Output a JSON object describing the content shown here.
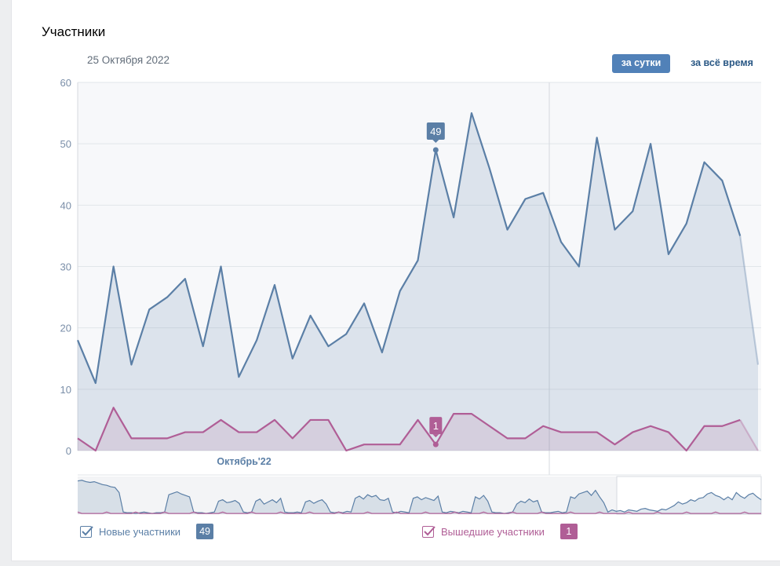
{
  "title": "Участники",
  "date": "25 Октября 2022",
  "buttons": {
    "day": "за сутки",
    "all": "за всё время"
  },
  "colors": {
    "joined": "#5b7fa6",
    "left": "#b05e96",
    "accent": "#5181b8"
  },
  "chart_data": {
    "type": "area",
    "ylim": [
      0,
      60
    ],
    "yticks": [
      "0",
      "10",
      "20",
      "30",
      "40",
      "50",
      "60"
    ],
    "xlabel_month": "Октябрь'22",
    "grid": true,
    "series": [
      {
        "name": "Новые участники",
        "values": [
          18,
          11,
          30,
          14,
          23,
          25,
          28,
          17,
          30,
          12,
          18,
          27,
          15,
          22,
          17,
          19,
          24,
          16,
          26,
          31,
          49,
          38,
          55,
          46,
          36,
          41,
          42,
          34,
          30,
          51,
          36,
          39,
          50,
          32,
          37,
          47,
          44,
          35,
          14
        ],
        "tooltip": "49",
        "tooltip_index": 20
      },
      {
        "name": "Вышедшие участники",
        "values": [
          2,
          0,
          7,
          2,
          2,
          2,
          3,
          3,
          5,
          3,
          3,
          5,
          2,
          5,
          5,
          0,
          1,
          1,
          1,
          5,
          1,
          6,
          6,
          4,
          2,
          2,
          4,
          3,
          3,
          3,
          1,
          3,
          4,
          3,
          0,
          4,
          4,
          5,
          0
        ],
        "tooltip": "1",
        "tooltip_index": 20
      }
    ],
    "legend": [
      {
        "name": "Новые участники",
        "badge": "49"
      },
      {
        "name": "Вышедшие участники",
        "badge": "1"
      }
    ]
  }
}
